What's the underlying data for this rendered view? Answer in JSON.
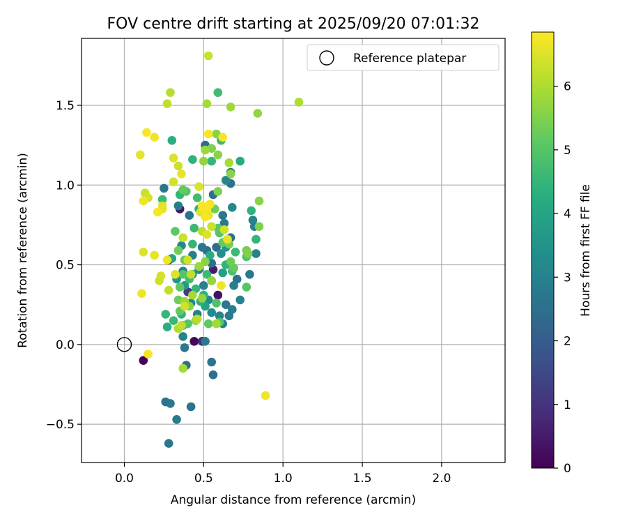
{
  "chart_data": {
    "type": "scatter",
    "title": "FOV centre drift starting at 2025/09/20 07:01:32",
    "xlabel": "Angular distance from reference (arcmin)",
    "ylabel": "Rotation from reference (arcmin)",
    "xlim": [
      -0.27,
      2.4
    ],
    "ylim": [
      -0.74,
      1.92
    ],
    "xticks": [
      0.0,
      0.5,
      1.0,
      1.5,
      2.0
    ],
    "xtick_labels": [
      "0.0",
      "0.5",
      "1.0",
      "1.5",
      "2.0"
    ],
    "yticks": [
      -0.5,
      0.0,
      0.5,
      1.0,
      1.5
    ],
    "ytick_labels": [
      "−0.5",
      "0.0",
      "0.5",
      "1.0",
      "1.5"
    ],
    "grid": true,
    "legend": {
      "position": "top-right",
      "entries": [
        "Reference platepar"
      ]
    },
    "reference": {
      "x": 0.0,
      "y": 0.0,
      "label": "Reference platepar"
    },
    "colorbar": {
      "label": "Hours from first FF file",
      "range": [
        0,
        6.85
      ],
      "ticks": [
        0,
        1,
        2,
        3,
        4,
        5,
        6
      ],
      "tick_labels": [
        "0",
        "1",
        "2",
        "3",
        "4",
        "5",
        "6"
      ],
      "colormap": "viridis"
    },
    "points": [
      [
        0.12,
        -0.1,
        0.05
      ],
      [
        0.44,
        0.02,
        0.1
      ],
      [
        0.28,
        0.53,
        0.2
      ],
      [
        0.59,
        0.31,
        0.3
      ],
      [
        0.35,
        0.85,
        0.4
      ],
      [
        0.56,
        0.47,
        0.5
      ],
      [
        0.49,
        0.02,
        0.8
      ],
      [
        0.4,
        0.33,
        1.2
      ],
      [
        0.28,
        -0.62,
        2.7
      ],
      [
        0.26,
        -0.36,
        2.6
      ],
      [
        0.29,
        -0.37,
        2.7
      ],
      [
        0.33,
        -0.47,
        2.8
      ],
      [
        0.42,
        -0.39,
        2.6
      ],
      [
        0.56,
        -0.19,
        2.5
      ],
      [
        0.55,
        -0.11,
        2.6
      ],
      [
        0.39,
        -0.13,
        2.5
      ],
      [
        0.38,
        -0.02,
        2.7
      ],
      [
        0.51,
        0.02,
        2.8
      ],
      [
        0.37,
        0.05,
        3.0
      ],
      [
        0.62,
        0.13,
        2.9
      ],
      [
        0.66,
        0.18,
        2.8
      ],
      [
        0.68,
        0.22,
        2.9
      ],
      [
        0.73,
        0.28,
        3.0
      ],
      [
        0.6,
        0.18,
        3.1
      ],
      [
        0.53,
        0.28,
        3.2
      ],
      [
        0.64,
        0.25,
        2.7
      ],
      [
        0.71,
        0.41,
        2.6
      ],
      [
        0.69,
        0.37,
        2.9
      ],
      [
        0.79,
        0.44,
        2.7
      ],
      [
        0.52,
        0.59,
        2.5
      ],
      [
        0.58,
        0.61,
        2.4
      ],
      [
        0.67,
        0.67,
        2.5
      ],
      [
        0.63,
        0.76,
        2.8
      ],
      [
        0.68,
        0.86,
        3.2
      ],
      [
        0.83,
        0.57,
        3.0
      ],
      [
        0.82,
        0.74,
        2.9
      ],
      [
        0.81,
        0.78,
        3.0
      ],
      [
        0.62,
        0.81,
        2.7
      ],
      [
        0.56,
        0.94,
        2.5
      ],
      [
        0.64,
        1.03,
        3.1
      ],
      [
        0.67,
        1.01,
        2.6
      ],
      [
        0.67,
        1.08,
        2.7
      ],
      [
        0.51,
        1.25,
        2.4
      ],
      [
        0.55,
        0.51,
        2.5
      ],
      [
        0.49,
        0.61,
        2.7
      ],
      [
        0.41,
        0.81,
        2.6
      ],
      [
        0.34,
        0.87,
        2.8
      ],
      [
        0.25,
        0.98,
        2.7
      ],
      [
        0.37,
        0.46,
        2.9
      ],
      [
        0.47,
        0.47,
        3.1
      ],
      [
        0.43,
        0.56,
        3.0
      ],
      [
        0.36,
        0.62,
        3.2
      ],
      [
        0.42,
        0.26,
        3.1
      ],
      [
        0.5,
        0.37,
        3.0
      ],
      [
        0.46,
        0.19,
        2.9
      ],
      [
        0.55,
        0.2,
        3.3
      ],
      [
        0.61,
        0.57,
        3.4
      ],
      [
        0.55,
        0.4,
        3.5
      ],
      [
        0.43,
        0.44,
        3.6
      ],
      [
        0.38,
        0.37,
        3.7
      ],
      [
        0.64,
        0.61,
        3.5
      ],
      [
        0.62,
        0.45,
        3.8
      ],
      [
        0.51,
        0.24,
        3.9
      ],
      [
        0.33,
        0.41,
        3.6
      ],
      [
        0.3,
        0.54,
        4.0
      ],
      [
        0.37,
        0.12,
        4.2
      ],
      [
        0.27,
        0.11,
        4.3
      ],
      [
        0.26,
        0.19,
        4.5
      ],
      [
        0.31,
        0.15,
        4.6
      ],
      [
        0.36,
        0.19,
        4.4
      ],
      [
        0.48,
        0.27,
        4.3
      ],
      [
        0.5,
        0.31,
        4.4
      ],
      [
        0.45,
        0.35,
        4.5
      ],
      [
        0.41,
        0.41,
        4.7
      ],
      [
        0.52,
        0.44,
        4.6
      ],
      [
        0.54,
        0.56,
        4.3
      ],
      [
        0.43,
        0.63,
        4.5
      ],
      [
        0.44,
        0.73,
        4.6
      ],
      [
        0.47,
        0.85,
        4.4
      ],
      [
        0.46,
        0.92,
        4.7
      ],
      [
        0.35,
        0.94,
        4.5
      ],
      [
        0.24,
        0.91,
        4.6
      ],
      [
        0.3,
        1.28,
        4.3
      ],
      [
        0.43,
        1.16,
        4.4
      ],
      [
        0.55,
        1.15,
        4.5
      ],
      [
        0.61,
        1.28,
        4.6
      ],
      [
        0.59,
        1.58,
        4.7
      ],
      [
        0.73,
        1.15,
        4.2
      ],
      [
        0.8,
        0.84,
        4.4
      ],
      [
        0.83,
        0.66,
        4.5
      ],
      [
        0.7,
        0.58,
        4.6
      ],
      [
        0.64,
        0.5,
        4.4
      ],
      [
        0.68,
        0.46,
        4.8
      ],
      [
        0.77,
        0.55,
        4.9
      ],
      [
        0.77,
        0.36,
        5.0
      ],
      [
        0.58,
        0.26,
        4.9
      ],
      [
        0.6,
        0.14,
        5.0
      ],
      [
        0.53,
        0.13,
        5.1
      ],
      [
        0.45,
        0.15,
        4.9
      ],
      [
        0.4,
        0.13,
        5.0
      ],
      [
        0.35,
        0.21,
        5.2
      ],
      [
        0.34,
        0.28,
        5.3
      ],
      [
        0.35,
        0.36,
        5.1
      ],
      [
        0.37,
        0.44,
        5.0
      ],
      [
        0.38,
        0.53,
        5.2
      ],
      [
        0.34,
        0.59,
        5.3
      ],
      [
        0.32,
        0.71,
        5.1
      ],
      [
        0.37,
        0.97,
        5.2
      ],
      [
        0.39,
        0.96,
        5.0
      ],
      [
        0.57,
        0.85,
        5.3
      ],
      [
        0.59,
        0.73,
        5.1
      ],
      [
        0.6,
        0.7,
        5.0
      ],
      [
        0.62,
        0.64,
        5.2
      ],
      [
        0.66,
        0.63,
        5.4
      ],
      [
        0.67,
        0.52,
        5.3
      ],
      [
        0.69,
        0.48,
        5.2
      ],
      [
        0.77,
        0.59,
        5.4
      ],
      [
        0.78,
        0.57,
        5.5
      ],
      [
        0.85,
        0.9,
        5.6
      ],
      [
        0.85,
        0.74,
        5.5
      ],
      [
        0.84,
        1.45,
        5.7
      ],
      [
        0.67,
        1.49,
        5.8
      ],
      [
        0.58,
        1.32,
        5.6
      ],
      [
        0.52,
        1.51,
        5.9
      ],
      [
        0.29,
        1.58,
        6.1
      ],
      [
        0.27,
        1.51,
        6.2
      ],
      [
        1.1,
        1.52,
        6.0
      ],
      [
        0.53,
        1.81,
        6.3
      ],
      [
        0.59,
        1.19,
        5.6
      ],
      [
        0.55,
        1.23,
        5.5
      ],
      [
        0.51,
        1.22,
        5.8
      ],
      [
        0.5,
        1.15,
        5.7
      ],
      [
        0.66,
        1.14,
        5.9
      ],
      [
        0.67,
        1.07,
        5.6
      ],
      [
        0.59,
        0.96,
        5.5
      ],
      [
        0.38,
        0.27,
        5.8
      ],
      [
        0.43,
        0.31,
        5.9
      ],
      [
        0.49,
        0.29,
        5.7
      ],
      [
        0.41,
        0.24,
        5.6
      ],
      [
        0.45,
        0.15,
        5.8
      ],
      [
        0.58,
        0.13,
        5.9
      ],
      [
        0.55,
        0.4,
        5.7
      ],
      [
        0.51,
        0.52,
        5.6
      ],
      [
        0.47,
        0.49,
        5.8
      ],
      [
        0.37,
        -0.15,
        5.9
      ],
      [
        0.34,
        0.1,
        6.0
      ],
      [
        0.36,
        0.12,
        6.2
      ],
      [
        0.46,
        0.16,
        6.1
      ],
      [
        0.38,
        0.24,
        6.4
      ],
      [
        0.42,
        0.44,
        6.2
      ],
      [
        0.32,
        0.44,
        6.5
      ],
      [
        0.4,
        0.53,
        6.4
      ],
      [
        0.37,
        0.67,
        6.3
      ],
      [
        0.49,
        0.71,
        6.2
      ],
      [
        0.52,
        0.69,
        6.5
      ],
      [
        0.55,
        0.74,
        6.3
      ],
      [
        0.63,
        0.72,
        6.4
      ],
      [
        0.65,
        0.66,
        6.6
      ],
      [
        0.61,
        0.37,
        6.7
      ],
      [
        0.19,
        0.56,
        6.6
      ],
      [
        0.12,
        0.58,
        6.5
      ],
      [
        0.23,
        0.43,
        6.4
      ],
      [
        0.22,
        0.4,
        6.3
      ],
      [
        0.11,
        0.32,
        6.7
      ],
      [
        0.28,
        0.34,
        6.2
      ],
      [
        0.15,
        -0.06,
        6.8
      ],
      [
        0.89,
        -0.32,
        6.7
      ],
      [
        0.24,
        0.85,
        6.6
      ],
      [
        0.24,
        0.87,
        6.5
      ],
      [
        0.15,
        0.92,
        6.4
      ],
      [
        0.12,
        0.9,
        6.7
      ],
      [
        0.13,
        0.95,
        6.3
      ],
      [
        0.21,
        0.83,
        6.8
      ],
      [
        0.27,
        0.53,
        6.7
      ],
      [
        0.31,
        1.02,
        6.4
      ],
      [
        0.34,
        1.12,
        6.3
      ],
      [
        0.31,
        1.17,
        6.5
      ],
      [
        0.1,
        1.19,
        6.6
      ],
      [
        0.19,
        1.3,
        6.7
      ],
      [
        0.14,
        1.33,
        6.8
      ],
      [
        0.36,
        1.07,
        6.6
      ],
      [
        0.47,
        0.99,
        6.5
      ],
      [
        0.49,
        0.87,
        6.8
      ],
      [
        0.5,
        0.84,
        6.7
      ],
      [
        0.52,
        0.86,
        6.8
      ],
      [
        0.53,
        0.81,
        6.6
      ],
      [
        0.54,
        0.88,
        6.7
      ],
      [
        0.48,
        0.83,
        6.5
      ],
      [
        0.51,
        0.8,
        6.8
      ],
      [
        0.52,
        0.85,
        6.7
      ],
      [
        0.62,
        1.3,
        6.8
      ],
      [
        0.53,
        1.32,
        6.8
      ]
    ]
  }
}
